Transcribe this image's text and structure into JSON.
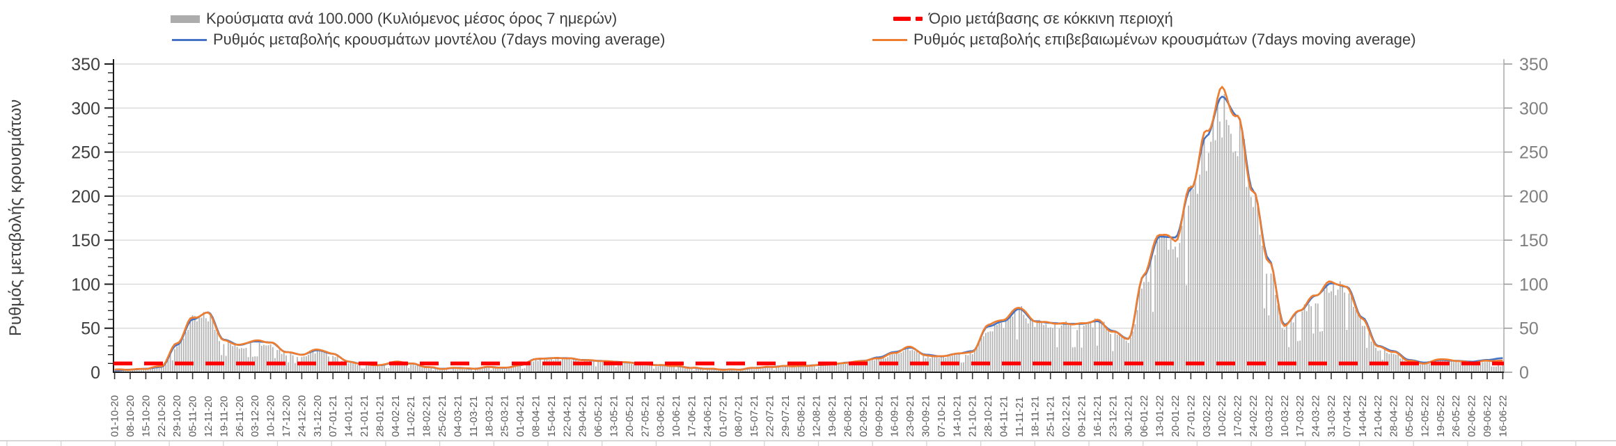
{
  "legend": {
    "items": [
      {
        "label": "Κρούσματα ανά 100.000 (Κυλιόμενος μέσος όρος 7 ημερών)",
        "swatch": "bar",
        "color": "#ACACAC"
      },
      {
        "label": "Ρυθμός μεταβολής κρουσμάτων μοντέλου (7days moving average)",
        "swatch": "line",
        "color": "#4472C4"
      },
      {
        "label": "Όριο μετάβασης σε κόκκινη περιοχή",
        "swatch": "dashed-line",
        "color": "#FE0000"
      },
      {
        "label": "Ρυθμός μεταβολής επιβεβαιωμένων κρουσμάτων (7days moving average)",
        "swatch": "line",
        "color": "#ED7D31"
      }
    ]
  },
  "y_axis": {
    "title": "Ρυθμός μεταβολής κρουσμάτων"
  },
  "chart_data": {
    "type": "combo-bar-line",
    "title": "",
    "grid": "horizontal",
    "legend_position": "top",
    "ylim": [
      0,
      350
    ],
    "y_ticks": [
      0,
      50,
      100,
      150,
      200,
      250,
      300,
      350
    ],
    "y_axis_title": "Ρυθμός μεταβολής κρουσμάτων",
    "days_per_category": 7,
    "bars_are_daily": true,
    "threshold": {
      "label": "Όριο μετάβασης σε κόκκινη περιοχή",
      "value": 10,
      "color": "#FE0000",
      "style": "dashed"
    },
    "x_tick_labels": [
      "01-10-20",
      "08-10-20",
      "15-10-20",
      "22-10-20",
      "29-10-20",
      "05-11-20",
      "12-11-20",
      "19-11-20",
      "26-11-20",
      "03-12-20",
      "10-12-20",
      "17-12-20",
      "24-12-20",
      "31-12-20",
      "07-01-21",
      "14-01-21",
      "21-01-21",
      "28-01-21",
      "04-02-21",
      "11-02-21",
      "18-02-21",
      "25-02-21",
      "04-03-21",
      "11-03-21",
      "18-03-21",
      "25-03-21",
      "01-04-21",
      "08-04-21",
      "15-04-21",
      "22-04-21",
      "29-04-21",
      "06-05-21",
      "13-05-21",
      "20-05-21",
      "27-05-21",
      "03-06-21",
      "10-06-21",
      "17-06-21",
      "24-06-21",
      "01-07-21",
      "08-07-21",
      "15-07-21",
      "22-07-21",
      "29-07-21",
      "05-08-21",
      "12-08-21",
      "19-08-21",
      "26-08-21",
      "02-09-21",
      "09-09-21",
      "16-09-21",
      "23-09-21",
      "30-09-21",
      "07-10-21",
      "14-10-21",
      "21-10-21",
      "28-10-21",
      "04-11-21",
      "11-11-21",
      "18-11-21",
      "25-11-21",
      "02-12-21",
      "09-12-21",
      "16-12-21",
      "23-12-21",
      "30-12-21",
      "06-01-22",
      "13-01-22",
      "20-01-22",
      "27-01-22",
      "03-02-22",
      "10-02-22",
      "17-02-22",
      "24-02-22",
      "03-03-22",
      "10-03-22",
      "17-03-22",
      "24-03-22",
      "31-03-22",
      "07-04-22",
      "14-04-22",
      "21-04-22",
      "28-04-22",
      "05-05-22",
      "12-05-22",
      "19-05-22",
      "26-05-22",
      "02-06-22",
      "09-06-22",
      "16-06-22"
    ],
    "series": [
      {
        "name": "Κρούσματα ανά 100.000 (Κυλιόμενος μέσος όρος 7 ημερών)",
        "type": "bar",
        "color": "#B2B2B2",
        "values": [
          1,
          2,
          3,
          5,
          30,
          58,
          63,
          34,
          29,
          33,
          32,
          21,
          18,
          24,
          19,
          11,
          8,
          7,
          10,
          9,
          5,
          3,
          4,
          3,
          5,
          4,
          7,
          14,
          15,
          15,
          13,
          12,
          11,
          10,
          8,
          7,
          6,
          4,
          3,
          2,
          2,
          4,
          5,
          6,
          6,
          7,
          8,
          10,
          12,
          15,
          21,
          27,
          18,
          17,
          20,
          22,
          50,
          56,
          70,
          55,
          53,
          52,
          52,
          56,
          44,
          36,
          100,
          146,
          138,
          194,
          250,
          284,
          268,
          190,
          118,
          50,
          66,
          82,
          96,
          90,
          56,
          27,
          21,
          12,
          9,
          14,
          12,
          10,
          12,
          12
        ]
      },
      {
        "name": "Ρυθμός μεταβολής κρουσμάτων μοντέλου (7days moving average)",
        "type": "line",
        "color": "#4472C4",
        "values": [
          2,
          3,
          4,
          6,
          31,
          60,
          68,
          37,
          31,
          35,
          34,
          23,
          20,
          25,
          21,
          12,
          9,
          8,
          11,
          10,
          6,
          4,
          5,
          4,
          6,
          5,
          8,
          15,
          16,
          16,
          14,
          13,
          12,
          11,
          9,
          8,
          7,
          5,
          4,
          3,
          3,
          5,
          6,
          7,
          7,
          8,
          9,
          11,
          13,
          17,
          23,
          28,
          20,
          18,
          21,
          24,
          52,
          58,
          72,
          58,
          56,
          55,
          55,
          58,
          47,
          38,
          110,
          154,
          153,
          208,
          268,
          313,
          291,
          206,
          128,
          54,
          70,
          87,
          101,
          97,
          62,
          30,
          24,
          14,
          11,
          14,
          13,
          12,
          14,
          16
        ]
      },
      {
        "name": "Ρυθμός μεταβολής επιβεβαιωμένων κρουσμάτων (7days moving average)",
        "type": "line",
        "color": "#ED7D31",
        "values": [
          3,
          3,
          4,
          7,
          33,
          62,
          67,
          36,
          31,
          36,
          34,
          23,
          20,
          26,
          21,
          12,
          9,
          8,
          12,
          10,
          6,
          4,
          5,
          4,
          6,
          5,
          8,
          15,
          16,
          16,
          14,
          13,
          12,
          11,
          9,
          8,
          7,
          5,
          4,
          3,
          3,
          5,
          6,
          7,
          7,
          8,
          9,
          11,
          13,
          16,
          22,
          29,
          19,
          18,
          21,
          23,
          54,
          60,
          74,
          58,
          56,
          55,
          55,
          59,
          46,
          38,
          112,
          158,
          150,
          210,
          272,
          320,
          288,
          204,
          126,
          53,
          71,
          88,
          103,
          96,
          60,
          29,
          23,
          13,
          10,
          15,
          13,
          11,
          13,
          13
        ]
      }
    ]
  }
}
